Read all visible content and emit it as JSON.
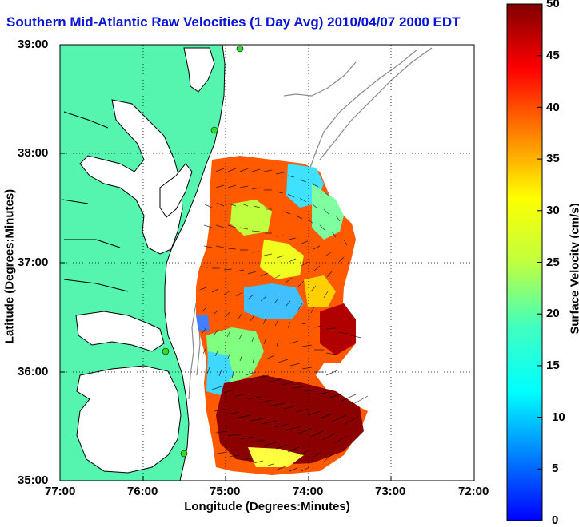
{
  "title": "Southern Mid-Atlantic Raw Velocities (1 Day Avg) 2010/04/07 2000 EDT",
  "axes": {
    "xlabel": "Longitude (Degrees:Minutes)",
    "ylabel": "Latitude (Degrees:Minutes)",
    "xticks": [
      "77:00",
      "76:00",
      "75:00",
      "74:00",
      "73:00",
      "72:00"
    ],
    "yticks": [
      "39:00",
      "38:00",
      "37:00",
      "36:00",
      "35:00"
    ],
    "grid": "dotted"
  },
  "colorbar": {
    "label": "Surface Velocity (cm/s)",
    "min": 0,
    "max": 50,
    "ticks": [
      "50",
      "45",
      "40",
      "35",
      "30",
      "25",
      "20",
      "15",
      "10",
      "5",
      "0"
    ],
    "colormap": "jet"
  },
  "colors": {
    "land": "#55f5b0",
    "coast": "#000000",
    "bathymetry": "#8a8a8a",
    "station": "#2fdc2f",
    "title": "#0a14d6"
  },
  "map": {
    "region": "Southern Mid-Atlantic Bight",
    "lon_range": [
      -77,
      -72
    ],
    "lat_range": [
      35,
      39
    ],
    "stations": [
      "station-1",
      "station-2",
      "station-3",
      "station-4"
    ]
  }
}
